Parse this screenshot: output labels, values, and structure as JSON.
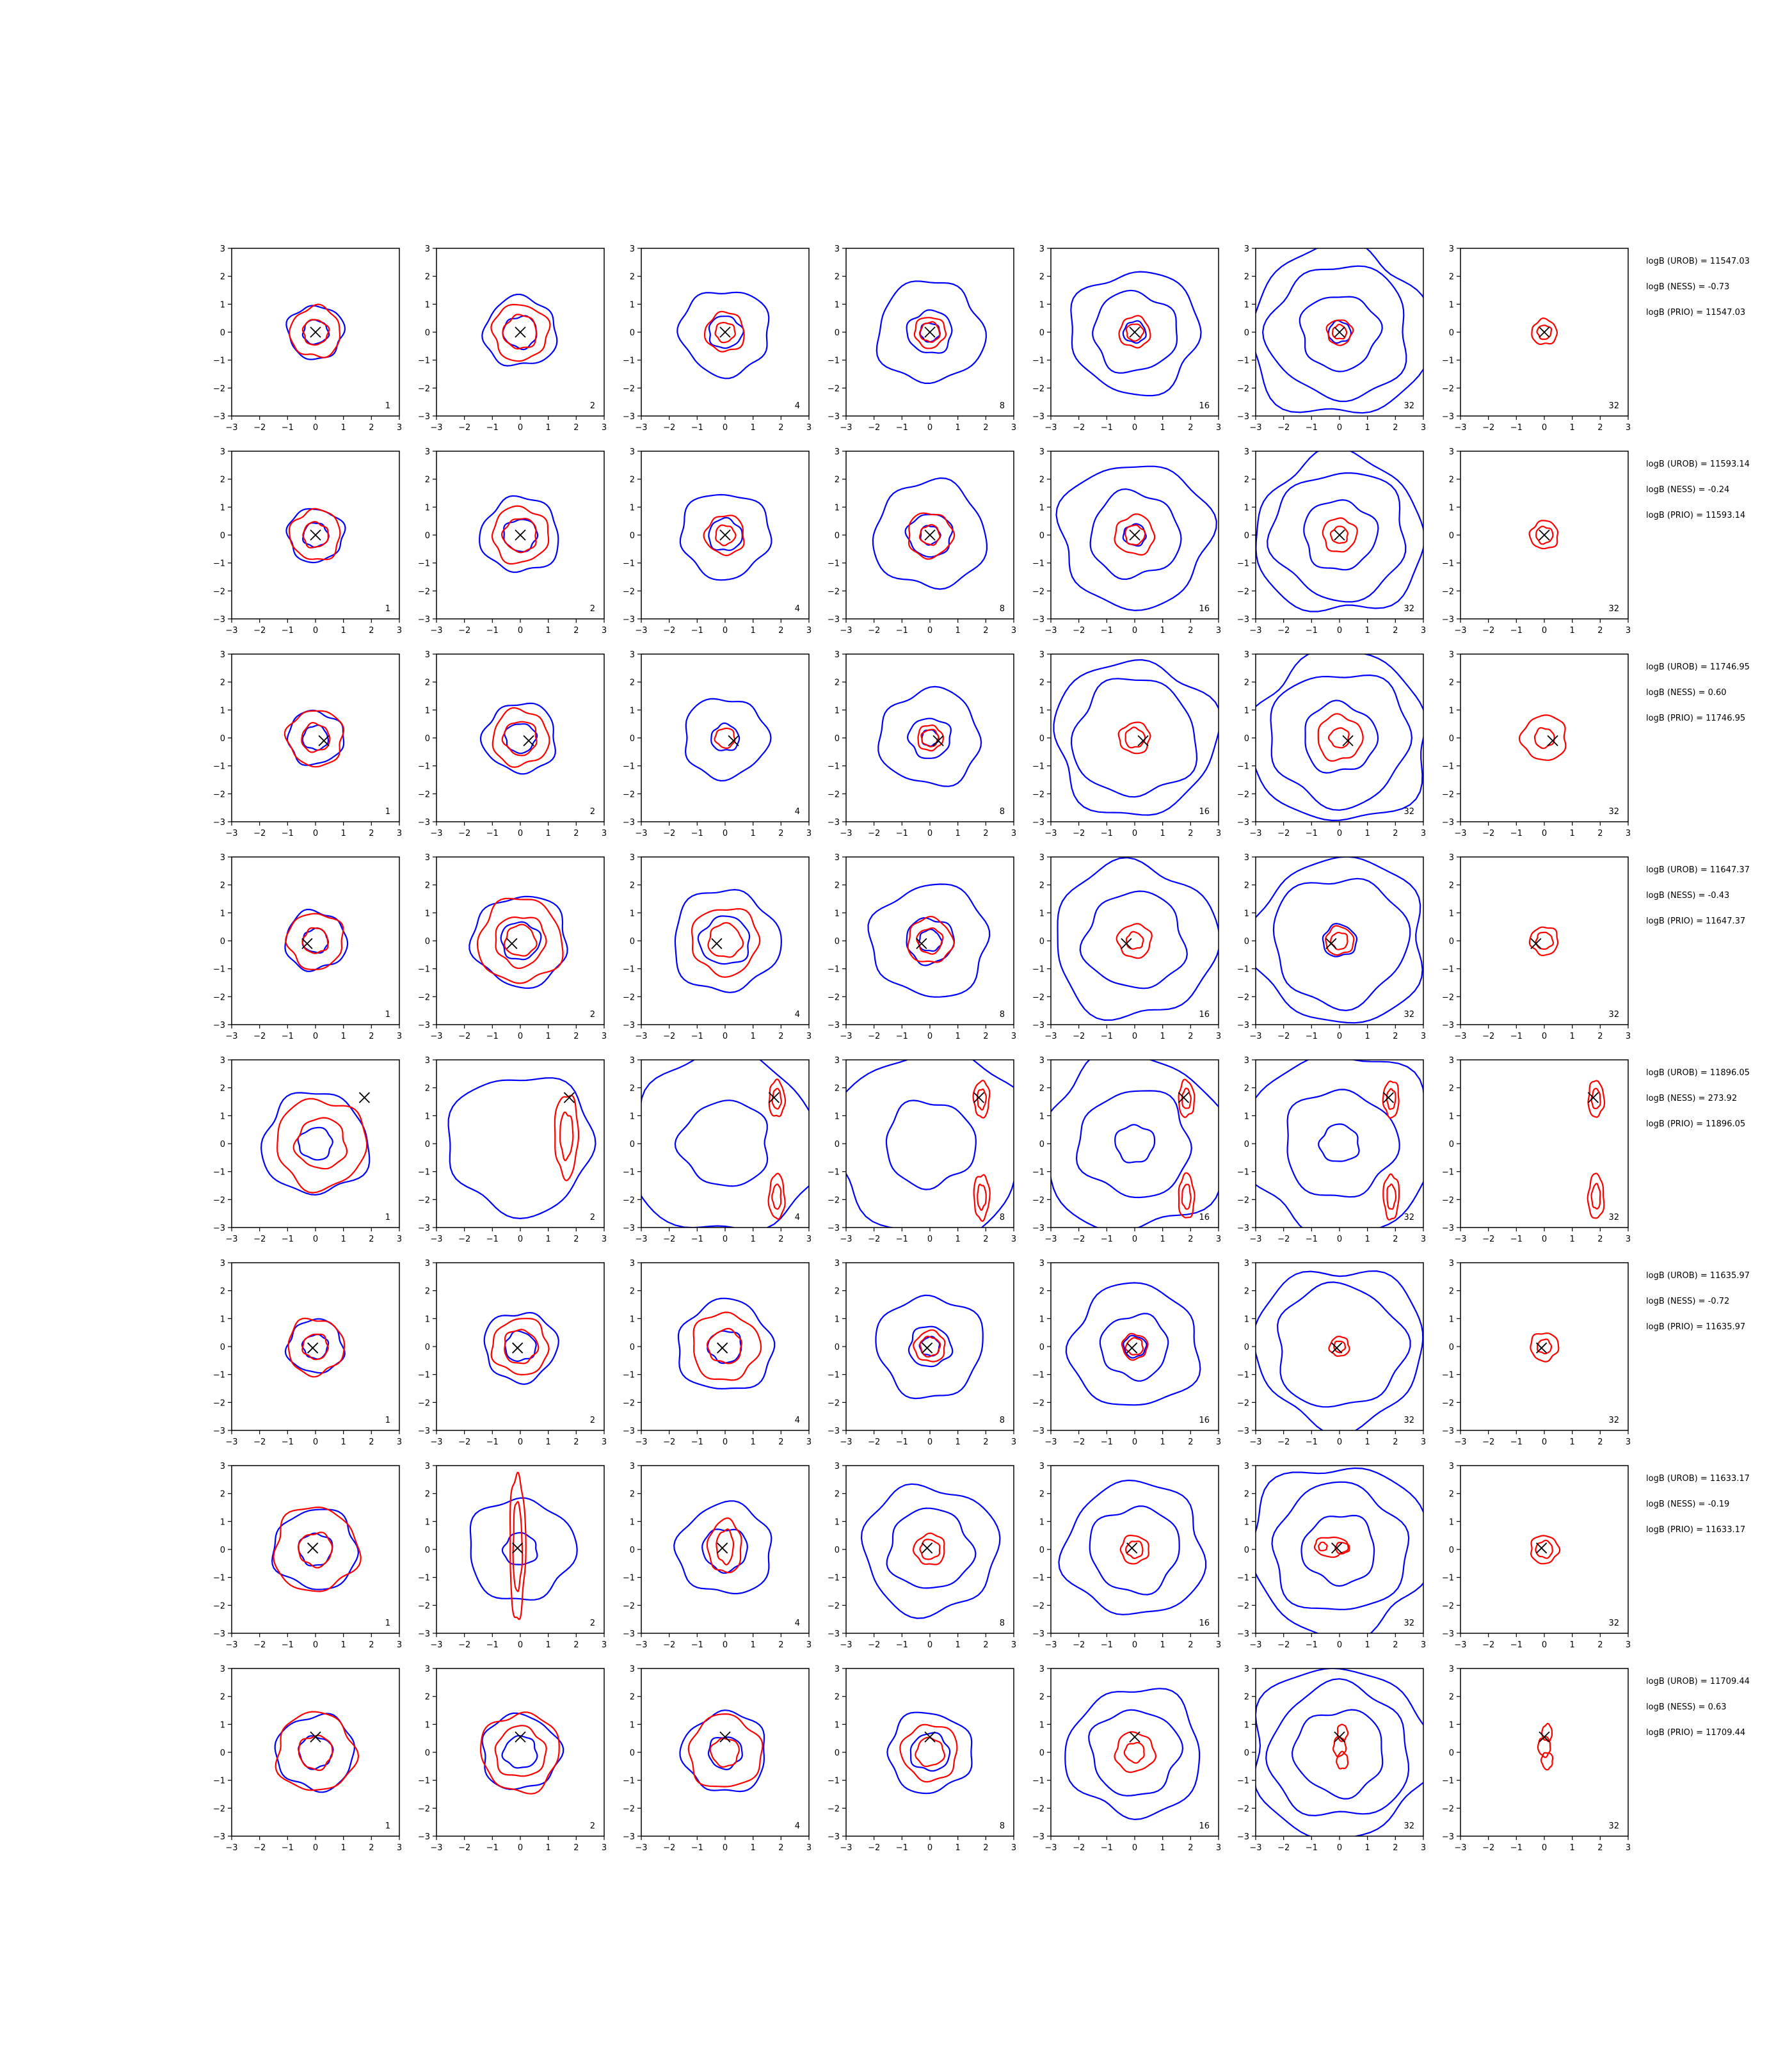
{
  "figure": {
    "background": "#ffffff"
  },
  "chart_data": {
    "type": "contour-grid",
    "title": "",
    "xlim": [
      -3,
      3
    ],
    "ylim": [
      -3,
      3
    ],
    "xticks": [
      -3,
      -2,
      -1,
      0,
      1,
      2,
      3
    ],
    "yticks": [
      -3,
      -2,
      -1,
      0,
      1,
      2,
      3
    ],
    "tick_labels": [
      "−3",
      "−2",
      "−1",
      "0",
      "1",
      "2",
      "3"
    ],
    "grid": false,
    "colors": {
      "blue_contours": "#0000ff",
      "red_contours": "#ff0000",
      "marker": "#000000"
    },
    "column_labels": [
      "1",
      "2",
      "4",
      "8",
      "16",
      "32",
      "32"
    ],
    "rows": [
      {
        "marker": [
          0.0,
          0.0
        ],
        "logB_UROB": "logB (UROB) = 11547.03",
        "logB_NESS": "logB (NESS) = -0.73",
        "logB_PRIO": "logB (PRIO) = 11547.03",
        "blue_radii": [
          [
            1.0,
            0.45
          ],
          [
            1.3,
            0.6
          ],
          [
            1.6,
            0.6
          ],
          [
            1.9,
            0.8,
            0.35
          ],
          [
            2.3,
            1.5,
            0.4
          ],
          [
            3.2,
            2.5,
            1.4,
            0.4
          ],
          []
        ],
        "red_radii": [
          [
            0.9,
            0.45
          ],
          [
            1.0,
            0.6
          ],
          [
            0.7,
            0.35
          ],
          [
            0.55,
            0.35
          ],
          [
            0.55,
            0.3
          ],
          [
            0.45,
            0.25
          ],
          [
            0.45,
            0.25
          ]
        ]
      },
      {
        "marker": [
          0.0,
          0.0
        ],
        "logB_UROB": "logB (UROB) = 11593.14",
        "logB_NESS": "logB (NESS) = -0.24",
        "logB_PRIO": "logB (PRIO) = 11593.14",
        "blue_radii": [
          [
            1.0,
            0.45
          ],
          [
            1.4,
            0.6
          ],
          [
            1.6,
            0.6
          ],
          [
            2.0,
            0.8,
            0.35
          ],
          [
            2.7,
            1.6,
            0.4
          ],
          [
            3.0,
            2.4,
            1.3
          ],
          []
        ],
        "red_radii": [
          [
            0.9,
            0.45
          ],
          [
            1.0,
            0.6
          ],
          [
            0.7,
            0.35
          ],
          [
            0.8,
            0.35
          ],
          [
            0.7,
            0.35
          ],
          [
            0.6,
            0.3
          ],
          [
            0.5,
            0.3
          ]
        ]
      },
      {
        "marker": [
          0.3,
          -0.1
        ],
        "logB_UROB": "logB (UROB) = 11746.95",
        "logB_NESS": "logB (NESS) = 0.60",
        "logB_PRIO": "logB (PRIO) = 11746.95",
        "blue_radii": [
          [
            1.0,
            0.45
          ],
          [
            1.3,
            0.55
          ],
          [
            1.5,
            0.5
          ],
          [
            1.8,
            0.75,
            0.3
          ],
          [
            2.9,
            2.2
          ],
          [
            3.2,
            2.5,
            1.3
          ],
          []
        ],
        "red_radii": [
          [
            1.0,
            0.5
          ],
          [
            1.0,
            0.6
          ],
          [
            0.35
          ],
          [
            0.45,
            0.3
          ],
          [
            0.55,
            0.35
          ],
          [
            0.8,
            0.35
          ],
          [
            0.8,
            0.35
          ]
        ]
      },
      {
        "marker": [
          -0.3,
          -0.1
        ],
        "logB_UROB": "logB (UROB) = 11647.37",
        "logB_NESS": "logB (NESS) = -0.43",
        "logB_PRIO": "logB (PRIO) = 11647.37",
        "blue_radii": [
          [
            1.1,
            0.45
          ],
          [
            1.7,
            0.7
          ],
          [
            1.9,
            0.9
          ],
          [
            2.1,
            0.85,
            0.4
          ],
          [
            2.9,
            1.8
          ],
          [
            3.1,
            2.4,
            0.6
          ],
          []
        ],
        "red_radii": [
          [
            1.0,
            0.45
          ],
          [
            1.5,
            0.9,
            0.55
          ],
          [
            1.2,
            0.6
          ],
          [
            0.8,
            0.45
          ],
          [
            0.6,
            0.3
          ],
          [
            0.5,
            0.3
          ],
          [
            0.5,
            0.3
          ]
        ]
      },
      {
        "marker": [
          1.75,
          1.65
        ],
        "logB_UROB": "logB (UROB) = 11896.05",
        "logB_NESS": "logB (NESS) = 273.92",
        "logB_PRIO": "logB (PRIO) = 11896.05",
        "blue_radii": [
          [
            1.9,
            0.6
          ],
          [
            2.6
          ],
          [
            3.4,
            1.6
          ],
          [
            3.5,
            1.6
          ],
          [
            3.3,
            2.0,
            0.7
          ],
          [
            3.4,
            2.0,
            0.7
          ],
          []
        ],
        "red_radii": [
          [
            1.6,
            0.9
          ],
          [],
          [],
          [],
          [],
          [],
          []
        ]
      },
      {
        "marker": [
          -0.1,
          -0.05
        ],
        "logB_UROB": "logB (UROB) = 11635.97",
        "logB_NESS": "logB (NESS) = -0.72",
        "logB_PRIO": "logB (PRIO) = 11635.97",
        "blue_radii": [
          [
            1.0,
            0.45
          ],
          [
            1.3,
            0.55
          ],
          [
            1.7,
            0.6
          ],
          [
            1.9,
            0.75,
            0.35
          ],
          [
            2.3,
            1.2,
            0.4
          ],
          [
            3.0,
            2.3
          ],
          []
        ],
        "red_radii": [
          [
            1.0,
            0.45
          ],
          [
            1.0,
            0.6
          ],
          [
            1.2,
            0.6
          ],
          [
            0.55,
            0.35
          ],
          [
            0.45,
            0.3
          ],
          [
            0.35,
            0.2
          ],
          [
            0.5,
            0.25
          ]
        ]
      },
      {
        "marker": [
          -0.1,
          0.05
        ],
        "logB_UROB": "logB (UROB) = 11633.17",
        "logB_NESS": "logB (NESS) = -0.19",
        "logB_PRIO": "logB (PRIO) = 11633.17",
        "blue_radii": [
          [
            1.5,
            0.6
          ],
          [
            1.9,
            0.6
          ],
          [
            1.7,
            0.8
          ],
          [
            2.4,
            1.5
          ],
          [
            2.5,
            1.6
          ],
          [
            3.2,
            2.4,
            1.3
          ],
          []
        ],
        "red_radii": [
          [
            1.5,
            0.6
          ],
          [],
          [],
          [
            0.55,
            0.35
          ],
          [
            0.5,
            0.3
          ],
          [],
          [
            0.5,
            0.3
          ]
        ]
      },
      {
        "marker": [
          0.0,
          0.55
        ],
        "logB_UROB": "logB (UROB) = 11709.44",
        "logB_NESS": "logB (NESS) = 0.63",
        "logB_PRIO": "logB (PRIO) = 11709.44",
        "blue_radii": [
          [
            1.4,
            0.6
          ],
          [
            1.4,
            0.6
          ],
          [
            1.5,
            0.6
          ],
          [
            1.5,
            0.7
          ],
          [
            2.4,
            1.6
          ],
          [
            3.2,
            2.5,
            1.6
          ],
          []
        ],
        "red_radii": [
          [
            1.4,
            0.6
          ],
          [
            1.4,
            0.9
          ],
          [
            1.3,
            0.5
          ],
          [
            1.0,
            0.5
          ],
          [
            0.7,
            0.35
          ],
          [],
          []
        ]
      }
    ]
  }
}
